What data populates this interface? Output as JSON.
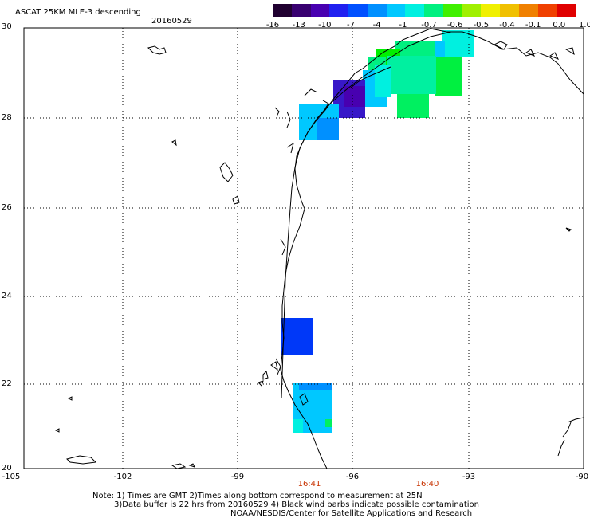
{
  "header": {
    "title": "ASCAT 25KM MLE-3 descending",
    "date": "20160529"
  },
  "colorbar": {
    "labels": [
      "-16",
      "-13",
      "-10",
      "-7",
      "-4",
      "-1",
      "-0.7",
      "-0.6",
      "-0.5",
      "-0.4",
      "-0.1",
      "0.0",
      "1.0"
    ],
    "colors": [
      "#200030",
      "#380070",
      "#4800b0",
      "#2020f0",
      "#0050ff",
      "#0090ff",
      "#00c8ff",
      "#00f0e0",
      "#00f080",
      "#40f000",
      "#a0f000",
      "#f0f000",
      "#f0c000",
      "#f08000",
      "#f04000",
      "#e00000"
    ]
  },
  "map": {
    "lon_labels": [
      "-105",
      "-102",
      "-99",
      "-96",
      "-93",
      "-90"
    ],
    "lat_labels": [
      "30",
      "28",
      "26",
      "24",
      "22",
      "20"
    ],
    "time_labels": [
      "16:41",
      "16:40"
    ],
    "lon_range": [
      -105,
      -90
    ],
    "lat_range": [
      20,
      30
    ],
    "line_color": "#000000",
    "time_color": "#c83200"
  },
  "notes": {
    "line1": "Note: 1) Times are GMT 2)Times along bottom correspond to measurement at 25N",
    "line2": "3)Data buffer is 22 hrs from 20160529 4) Black wind barbs indicate possible contamination",
    "line3": "NOAA/NESDIS/Center for Satellite Applications and Research"
  }
}
